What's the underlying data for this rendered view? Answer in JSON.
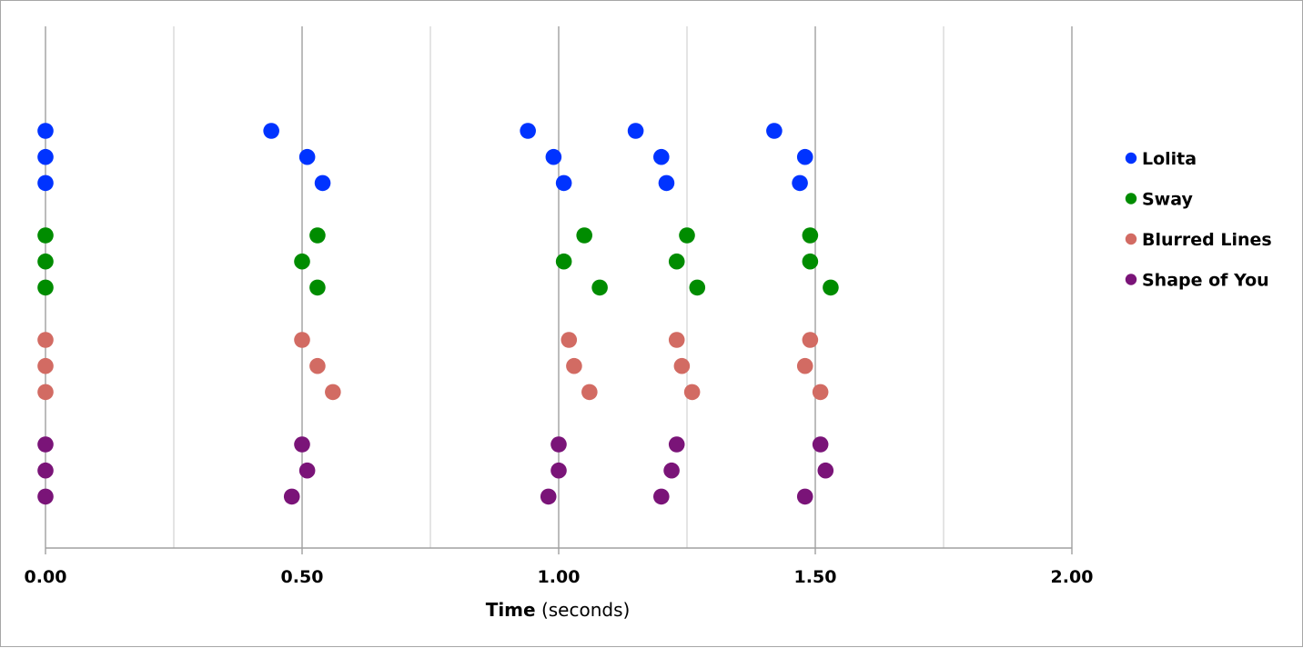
{
  "chart_data": {
    "type": "scatter",
    "title": "",
    "xlabel_bold": "Time",
    "xlabel_rest": " (seconds)",
    "ylabel": "",
    "xlim": [
      0,
      2
    ],
    "x_ticks": [
      0,
      0.5,
      1.0,
      1.5,
      2.0
    ],
    "x_tick_labels": [
      "0.00",
      "0.50",
      "1.00",
      "1.50",
      "2.00"
    ],
    "grid": true,
    "legend_position": "right",
    "series": [
      {
        "name": "Lolita",
        "color": "#0033ff",
        "rows": [
          [
            0.0,
            0.44,
            0.94,
            1.15,
            1.42
          ],
          [
            0.0,
            0.51,
            0.99,
            1.2,
            1.48
          ],
          [
            0.0,
            0.54,
            1.01,
            1.21,
            1.47
          ]
        ]
      },
      {
        "name": "Sway",
        "color": "#008c00",
        "rows": [
          [
            0.0,
            0.53,
            1.05,
            1.25,
            1.49
          ],
          [
            0.0,
            0.5,
            1.01,
            1.23,
            1.49
          ],
          [
            0.0,
            0.53,
            1.08,
            1.27,
            1.53
          ]
        ]
      },
      {
        "name": "Blurred Lines",
        "color": "#d26b63",
        "rows": [
          [
            0.0,
            0.5,
            1.02,
            1.23,
            1.49
          ],
          [
            0.0,
            0.53,
            1.03,
            1.24,
            1.48
          ],
          [
            0.0,
            0.56,
            1.06,
            1.26,
            1.51
          ]
        ]
      },
      {
        "name": "Shape of You",
        "color": "#7a1478",
        "rows": [
          [
            0.0,
            0.5,
            1.0,
            1.23,
            1.51
          ],
          [
            0.0,
            0.51,
            1.0,
            1.22,
            1.52
          ],
          [
            0.0,
            0.48,
            0.98,
            1.2,
            1.48
          ]
        ]
      }
    ]
  }
}
